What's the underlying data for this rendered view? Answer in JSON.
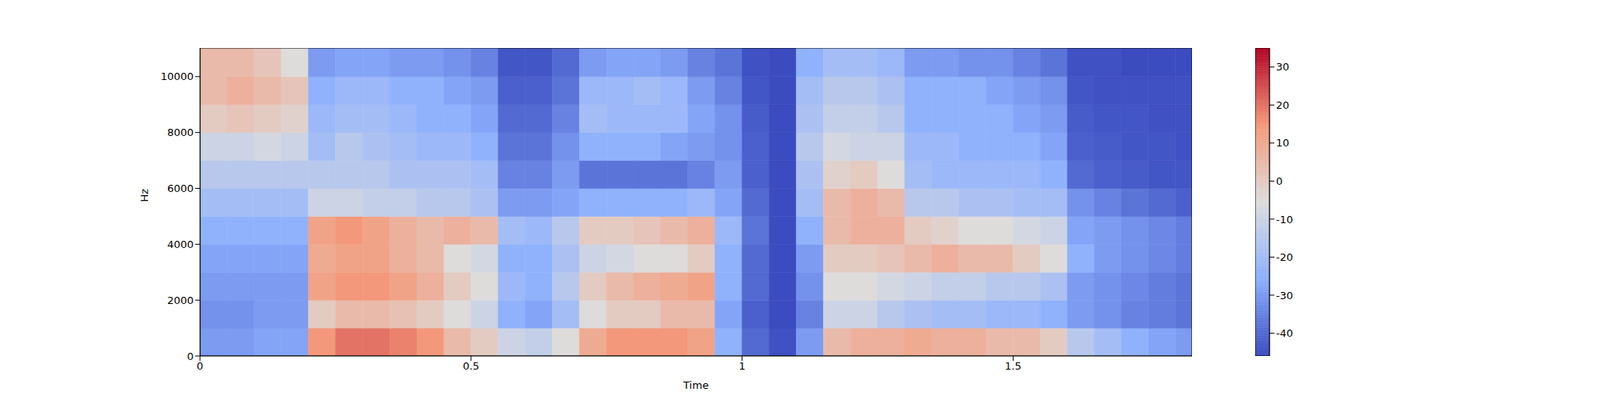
{
  "chart_data": {
    "type": "heatmap",
    "x_label": "Time",
    "y_label": "Hz",
    "xlim": [
      0,
      1.83
    ],
    "xticks": [
      0,
      0.5,
      1,
      1.5
    ],
    "ylim": [
      0,
      11025
    ],
    "yticks": [
      0,
      2000,
      4000,
      6000,
      8000,
      10000
    ],
    "x_edges": [
      0,
      0.05,
      0.1,
      0.15,
      0.2,
      0.25,
      0.3,
      0.35,
      0.4,
      0.45,
      0.5,
      0.55,
      0.6,
      0.65,
      0.7,
      0.75,
      0.8,
      0.85,
      0.9,
      0.95,
      1.0,
      1.05,
      1.1,
      1.15,
      1.2,
      1.25,
      1.3,
      1.35,
      1.4,
      1.45,
      1.5,
      1.55,
      1.6,
      1.65,
      1.7,
      1.75,
      1.8,
      1.85
    ],
    "y_edges": [
      0,
      1000,
      2000,
      3000,
      4000,
      5000,
      6000,
      7000,
      8000,
      9000,
      10000,
      11025
    ],
    "cells": [
      [
        -30,
        -30,
        -28,
        -28,
        15,
        20,
        20,
        18,
        15,
        5,
        0,
        -10,
        -12,
        -5,
        10,
        15,
        15,
        15,
        12,
        -25,
        -40,
        -45,
        -30,
        5,
        8,
        8,
        10,
        8,
        8,
        5,
        5,
        0,
        -15,
        -20,
        -25,
        -28,
        -30
      ],
      [
        -32,
        -32,
        -30,
        -30,
        0,
        5,
        5,
        3,
        0,
        -5,
        -10,
        -25,
        -28,
        -20,
        -5,
        0,
        0,
        5,
        5,
        -28,
        -42,
        -46,
        -35,
        -10,
        -10,
        -15,
        -18,
        -20,
        -20,
        -22,
        -22,
        -25,
        -30,
        -32,
        -35,
        -36,
        -38
      ],
      [
        -30,
        -30,
        -30,
        -30,
        12,
        15,
        15,
        12,
        8,
        0,
        -5,
        -22,
        -25,
        -15,
        0,
        5,
        8,
        10,
        12,
        -25,
        -40,
        -46,
        -32,
        -5,
        -5,
        -8,
        -10,
        -12,
        -12,
        -15,
        -15,
        -18,
        -30,
        -32,
        -34,
        -36,
        -38
      ],
      [
        -28,
        -28,
        -28,
        -28,
        10,
        12,
        12,
        8,
        5,
        -5,
        -8,
        -25,
        -25,
        -18,
        -10,
        -8,
        -5,
        -5,
        0,
        -25,
        -40,
        -46,
        -30,
        0,
        0,
        2,
        5,
        8,
        5,
        5,
        0,
        -5,
        -25,
        -30,
        -32,
        -34,
        -36
      ],
      [
        -25,
        -25,
        -25,
        -25,
        12,
        15,
        12,
        8,
        5,
        8,
        5,
        -20,
        -22,
        -15,
        0,
        0,
        2,
        5,
        8,
        -22,
        -38,
        -46,
        -25,
        5,
        8,
        8,
        0,
        -2,
        -5,
        -5,
        -8,
        -10,
        -28,
        -30,
        -32,
        -34,
        -36
      ],
      [
        -20,
        -20,
        -20,
        -20,
        -10,
        -10,
        -12,
        -12,
        -15,
        -15,
        -18,
        -30,
        -30,
        -28,
        -25,
        -25,
        -25,
        -25,
        -22,
        -28,
        -40,
        -46,
        -20,
        5,
        8,
        5,
        -15,
        -15,
        -18,
        -18,
        -20,
        -20,
        -32,
        -35,
        -38,
        -40,
        -42
      ],
      [
        -15,
        -15,
        -15,
        -15,
        -15,
        -15,
        -15,
        -18,
        -18,
        -18,
        -20,
        -35,
        -35,
        -30,
        -38,
        -38,
        -38,
        -38,
        -35,
        -30,
        -42,
        -46,
        -18,
        -2,
        0,
        -5,
        -20,
        -22,
        -22,
        -22,
        -22,
        -25,
        -40,
        -42,
        -43,
        -44,
        -44
      ],
      [
        -10,
        -10,
        -8,
        -10,
        -20,
        -15,
        -18,
        -20,
        -22,
        -22,
        -25,
        -38,
        -38,
        -32,
        -25,
        -25,
        -25,
        -28,
        -30,
        -32,
        -42,
        -46,
        -15,
        -8,
        -10,
        -10,
        -22,
        -22,
        -25,
        -25,
        -25,
        -28,
        -42,
        -43,
        -44,
        -44,
        -45
      ],
      [
        0,
        2,
        0,
        -2,
        -22,
        -20,
        -20,
        -22,
        -25,
        -25,
        -28,
        -40,
        -40,
        -35,
        -20,
        -22,
        -22,
        -22,
        -28,
        -32,
        -43,
        -46,
        -18,
        -12,
        -12,
        -15,
        -25,
        -25,
        -25,
        -25,
        -28,
        -30,
        -43,
        -44,
        -44,
        -45,
        -45
      ],
      [
        5,
        8,
        5,
        2,
        -25,
        -22,
        -22,
        -25,
        -25,
        -28,
        -30,
        -42,
        -42,
        -38,
        -22,
        -22,
        -20,
        -22,
        -30,
        -35,
        -44,
        -46,
        -20,
        -15,
        -15,
        -18,
        -25,
        -25,
        -25,
        -28,
        -30,
        -32,
        -44,
        -45,
        -45,
        -45,
        -45
      ],
      [
        5,
        5,
        2,
        -5,
        -30,
        -28,
        -28,
        -30,
        -30,
        -32,
        -35,
        -44,
        -44,
        -40,
        -30,
        -28,
        -28,
        -30,
        -35,
        -38,
        -45,
        -46,
        -25,
        -20,
        -20,
        -22,
        -30,
        -30,
        -32,
        -32,
        -35,
        -38,
        -45,
        -45,
        -46,
        -46,
        -46
      ]
    ],
    "colorbar": {
      "range": [
        -46,
        35
      ],
      "ticks": [
        -40,
        -30,
        -20,
        -10,
        0,
        10,
        20,
        30
      ]
    }
  }
}
